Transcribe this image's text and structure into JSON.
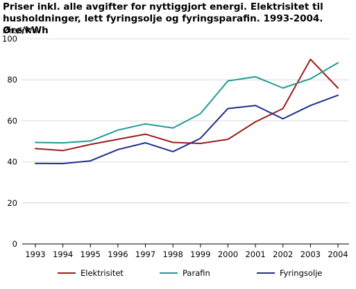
{
  "chart_data": {
    "type": "line",
    "title": "Priser inkl. alle avgifter for nyttiggjort energi. Elektrisitet til husholdninger, lett fyringsolje og fyringsparafin. 1993-2004. Øre/kWh",
    "ylabel": "Øre/kWh",
    "xlabel": "",
    "x": [
      "1993",
      "1994",
      "1995",
      "1996",
      "1997",
      "1998",
      "1999",
      "2000",
      "2001",
      "2002",
      "2003",
      "2004"
    ],
    "ylim": [
      0,
      100
    ],
    "yticks": [
      "0",
      "20",
      "40",
      "60",
      "80",
      "100"
    ],
    "grid": true,
    "legend_position": "bottom",
    "series": [
      {
        "name": "Elektrisitet",
        "color": "#9b1c1c",
        "values": [
          46.5,
          45.5,
          48.5,
          51,
          53.5,
          49.5,
          49,
          51,
          59.5,
          66,
          90,
          76
        ]
      },
      {
        "name": "Parafin",
        "color": "#1f9b96",
        "values": [
          49.5,
          49.3,
          50.2,
          55.5,
          58.5,
          56.5,
          63.5,
          79.5,
          81.5,
          76,
          80.5,
          88.3
        ]
      },
      {
        "name": "Fyringsolje",
        "color": "#1c2e8c",
        "values": [
          39.3,
          39.2,
          40.5,
          46,
          49.3,
          45,
          51.5,
          66,
          67.5,
          61,
          67.5,
          72.5
        ]
      }
    ]
  }
}
